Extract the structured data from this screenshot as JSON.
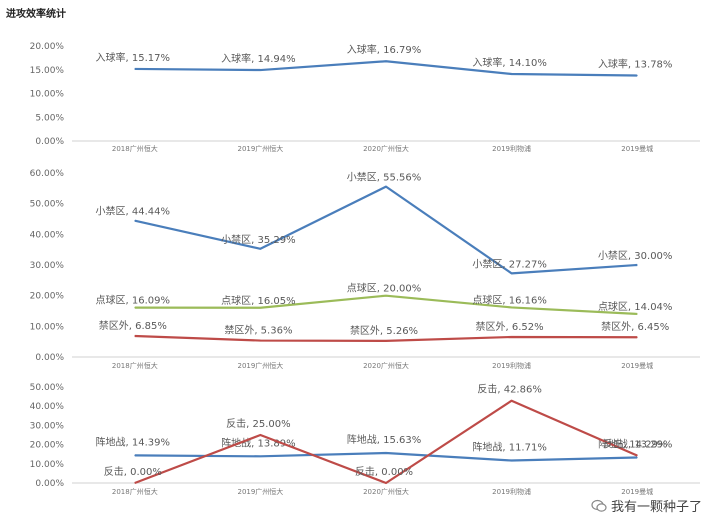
{
  "page_title": "进攻效率统计",
  "watermark": "我有一颗种子了",
  "chart_data": [
    {
      "type": "line",
      "categories": [
        "2018广州恒大",
        "2019广州恒大",
        "2020广州恒大",
        "2019利物浦",
        "2019曼城"
      ],
      "y_ticks": [
        "0.00%",
        "5.00%",
        "10.00%",
        "15.00%",
        "20.00%"
      ],
      "ylim": [
        0,
        20
      ],
      "grid": false,
      "series": [
        {
          "name": "入球率",
          "color": "#4a7ebb",
          "values": [
            15.17,
            14.94,
            16.79,
            14.1,
            13.78
          ],
          "labels": [
            "入球率, 15.17%",
            "入球率, 14.94%",
            "入球率, 16.79%",
            "入球率, 14.10%",
            "入球率, 13.78%"
          ]
        }
      ]
    },
    {
      "type": "line",
      "categories": [
        "2018广州恒大",
        "2019广州恒大",
        "2020广州恒大",
        "2019利物浦",
        "2019曼城"
      ],
      "y_ticks": [
        "0.00%",
        "10.00%",
        "20.00%",
        "30.00%",
        "40.00%",
        "50.00%",
        "60.00%"
      ],
      "ylim": [
        0,
        60
      ],
      "grid": false,
      "series": [
        {
          "name": "小禁区",
          "color": "#4a7ebb",
          "values": [
            44.44,
            35.29,
            55.56,
            27.27,
            30.0
          ],
          "labels": [
            "小禁区, 44.44%",
            "小禁区, 35.29%",
            "小禁区, 55.56%",
            "小禁区, 27.27%",
            "小禁区, 30.00%"
          ]
        },
        {
          "name": "点球区",
          "color": "#9bbb59",
          "values": [
            16.09,
            16.05,
            20.0,
            16.16,
            14.04
          ],
          "labels": [
            "点球区, 16.09%",
            "点球区, 16.05%",
            "点球区, 20.00%",
            "点球区, 16.16%",
            "点球区, 14.04%"
          ]
        },
        {
          "name": "禁区外",
          "color": "#be4b48",
          "values": [
            6.85,
            5.36,
            5.26,
            6.52,
            6.45
          ],
          "labels": [
            "禁区外, 6.85%",
            "禁区外, 5.36%",
            "禁区外, 5.26%",
            "禁区外, 6.52%",
            "禁区外, 6.45%"
          ]
        }
      ]
    },
    {
      "type": "line",
      "categories": [
        "2018广州恒大",
        "2019广州恒大",
        "2020广州恒大",
        "2019利物浦",
        "2019曼城"
      ],
      "y_ticks": [
        "0.00%",
        "10.00%",
        "20.00%",
        "30.00%",
        "40.00%",
        "50.00%"
      ],
      "ylim": [
        0,
        50
      ],
      "grid": false,
      "series": [
        {
          "name": "阵地战",
          "color": "#4a7ebb",
          "values": [
            14.39,
            13.89,
            15.63,
            11.71,
            13.29
          ],
          "labels": [
            "阵地战, 14.39%",
            "阵地战, 13.89%",
            "阵地战, 15.63%",
            "阵地战, 11.71%",
            "阵地战, 13.29%"
          ]
        },
        {
          "name": "反击",
          "color": "#be4b48",
          "values": [
            0.0,
            25.0,
            0.0,
            42.86,
            14.29
          ],
          "labels": [
            "反击, 0.00%",
            "反击, 25.00%",
            "反击, 0.00%",
            "反击, 42.86%",
            "反击, 14.29%"
          ]
        }
      ]
    }
  ]
}
